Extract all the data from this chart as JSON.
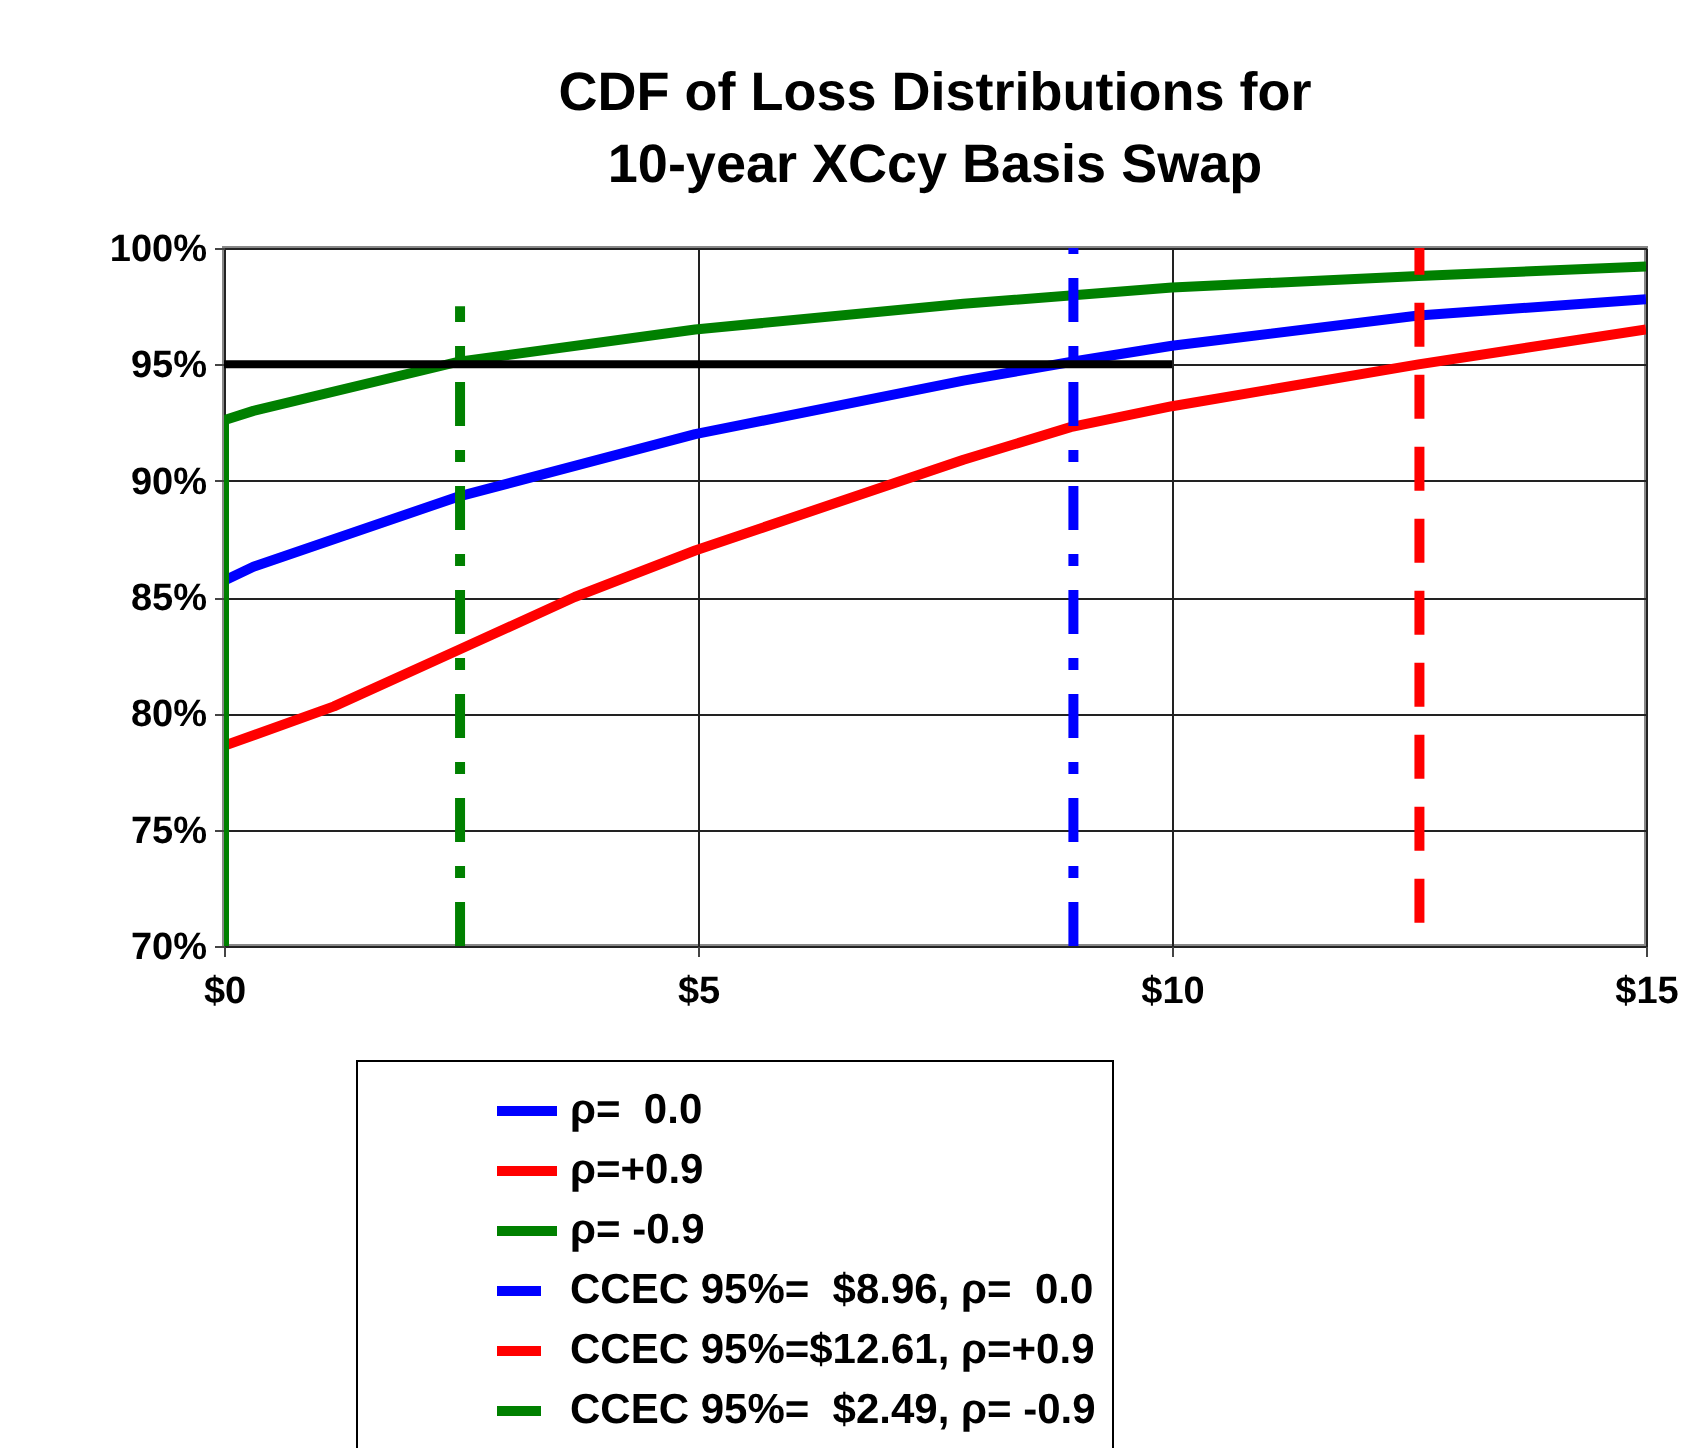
{
  "chart_data": {
    "type": "line",
    "title": "CDF of Loss Distributions for\n10-year XCcy Basis Swap",
    "xlim": [
      0,
      15
    ],
    "xticks": [
      {
        "value": 0,
        "label": "$0"
      },
      {
        "value": 5,
        "label": "$5"
      },
      {
        "value": 10,
        "label": "$10"
      },
      {
        "value": 15,
        "label": "$15"
      }
    ],
    "ylim": [
      70,
      100
    ],
    "yticks": [
      {
        "value": 70,
        "label": "70%"
      },
      {
        "value": 75,
        "label": "75%"
      },
      {
        "value": 80,
        "label": "80%"
      },
      {
        "value": 85,
        "label": "85%"
      },
      {
        "value": 90,
        "label": "90%"
      },
      {
        "value": 95,
        "label": "95%"
      },
      {
        "value": 100,
        "label": "100%"
      }
    ],
    "grid": true,
    "legend": "bottom",
    "marker": "none",
    "series": [
      {
        "name": "ρ=  0.0",
        "color": "#0000ff",
        "line_style": "solid",
        "x": [
          0,
          0,
          0.31,
          2.46,
          4.97,
          7.8,
          8.93,
          10,
          12.6,
          15
        ],
        "values": [
          70,
          85.7,
          86.3,
          89.3,
          92.0,
          94.3,
          95.1,
          95.8,
          97.1,
          97.8
        ]
      },
      {
        "name": "ρ=+0.9",
        "color": "#ff0000",
        "line_style": "solid",
        "x": [
          0,
          0,
          1.16,
          2.46,
          3.7,
          4.97,
          7.8,
          8.93,
          10,
          12.6,
          15
        ],
        "values": [
          70,
          78.6,
          80.3,
          82.7,
          85.0,
          87.0,
          90.9,
          92.3,
          93.2,
          95.0,
          96.5
        ]
      },
      {
        "name": "ρ= -0.9",
        "color": "#008000",
        "line_style": "solid",
        "x": [
          0,
          0,
          0.31,
          2.46,
          4.97,
          7.8,
          10,
          12.6,
          15
        ],
        "values": [
          70,
          92.6,
          93.0,
          95.1,
          96.5,
          97.6,
          98.3,
          98.8,
          99.2
        ]
      },
      {
        "name": "CCEC 95%=  $8.96, ρ=  0.0",
        "color": "#0000ff",
        "line_style": "dashdot",
        "x": [
          8.96,
          8.96
        ],
        "values": [
          70,
          100
        ]
      },
      {
        "name": "CCEC 95%=$12.61, ρ=+0.9",
        "color": "#ff0000",
        "line_style": "dashed",
        "x": [
          12.61,
          12.61
        ],
        "values": [
          71,
          100
        ]
      },
      {
        "name": "CCEC 95%=  $2.49, ρ= -0.9",
        "color": "#008000",
        "line_style": "dashdot",
        "x": [
          2.49,
          2.49
        ],
        "values": [
          70,
          97.5
        ]
      },
      {
        "color": "#000000",
        "line_style": "solid",
        "x": [
          0,
          10
        ],
        "values": [
          95,
          95
        ]
      }
    ]
  }
}
